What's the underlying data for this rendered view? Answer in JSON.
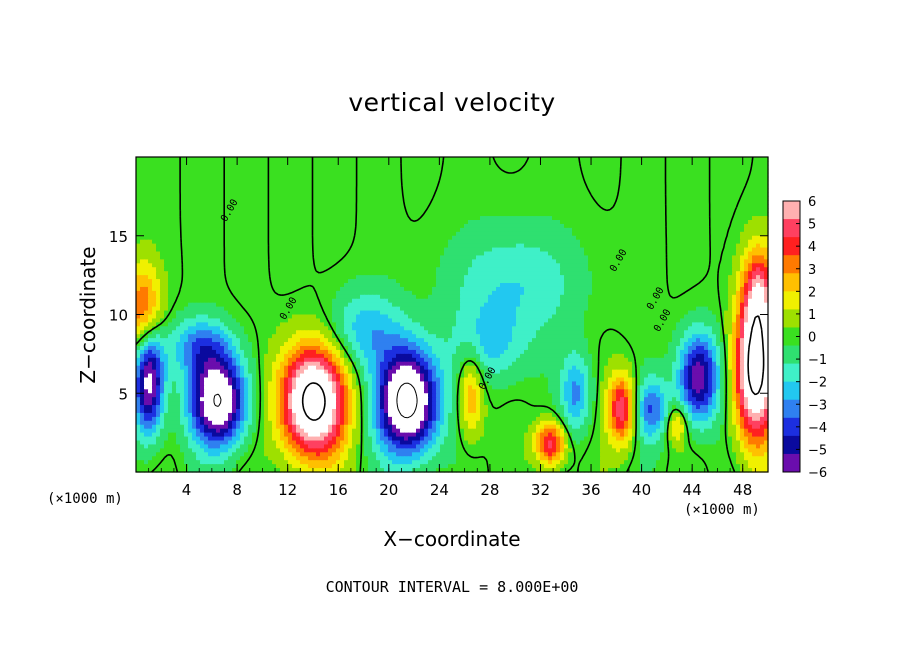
{
  "chart_data": {
    "type": "heatmap",
    "title": "vertical velocity",
    "xlabel": "X−coordinate",
    "ylabel": "Z−coordinate",
    "x_unit_left": "(×1000 m)",
    "x_unit_right": "(×1000 m)",
    "xlim": [
      0,
      50
    ],
    "ylim": [
      0,
      20
    ],
    "x_ticks": [
      "4",
      "8",
      "12",
      "16",
      "20",
      "24",
      "28",
      "32",
      "36",
      "40",
      "44",
      "48"
    ],
    "y_ticks": [
      "5",
      "10",
      "15"
    ],
    "colorbar": {
      "ticks": [
        "6",
        "5",
        "4",
        "3",
        "2",
        "1",
        "0",
        "−1",
        "−2",
        "−3",
        "−4",
        "−5",
        "−6"
      ],
      "range": [
        -6,
        6
      ],
      "colors": [
        "#6a0dad",
        "#0a0a9e",
        "#1c2fe0",
        "#2f80f0",
        "#22c8f0",
        "#3ff0c8",
        "#2fe070",
        "#3ae020",
        "#9ee000",
        "#f0f000",
        "#ffc000",
        "#ff7a00",
        "#ff2020",
        "#ff4060",
        "#ffb0b0"
      ]
    },
    "contour_labels": [
      "0.00",
      "0.00",
      "0.00",
      "0.00",
      "0.00",
      "0.00"
    ],
    "features": [
      {
        "x": 1.0,
        "z": 6,
        "w": -7,
        "sx": 1.2,
        "sz": 3.5
      },
      {
        "x": 0.6,
        "z": 10,
        "w": 4.5,
        "sx": 1.4,
        "sz": 3.0
      },
      {
        "x": 6.5,
        "z": 4.5,
        "w": -8,
        "sx": 2.2,
        "sz": 2.8
      },
      {
        "x": 5.0,
        "z": 8,
        "w": -3,
        "sx": 2.5,
        "sz": 1.8
      },
      {
        "x": 14.0,
        "z": 4.5,
        "w": 9,
        "sx": 2.6,
        "sz": 3.5
      },
      {
        "x": 21.5,
        "z": 4.5,
        "w": -9,
        "sx": 2.4,
        "sz": 3.3
      },
      {
        "x": 18.0,
        "z": 9,
        "w": -2.5,
        "sx": 3.0,
        "sz": 2.5
      },
      {
        "x": 26.5,
        "z": 5,
        "w": 3,
        "sx": 1.0,
        "sz": 2.8
      },
      {
        "x": 28.0,
        "z": 8,
        "w": -2,
        "sx": 3.0,
        "sz": 2.5
      },
      {
        "x": 32.8,
        "z": 1.8,
        "w": 5,
        "sx": 1.2,
        "sz": 1.4
      },
      {
        "x": 34.8,
        "z": 5,
        "w": -3,
        "sx": 1.2,
        "sz": 2.5
      },
      {
        "x": 38.4,
        "z": 4,
        "w": 5,
        "sx": 1.1,
        "sz": 2.2
      },
      {
        "x": 40.8,
        "z": 4,
        "w": -3.5,
        "sx": 1.3,
        "sz": 2.0
      },
      {
        "x": 42.8,
        "z": 3,
        "w": 2.5,
        "sx": 0.8,
        "sz": 1.2
      },
      {
        "x": 44.5,
        "z": 6,
        "w": -6,
        "sx": 1.6,
        "sz": 2.8
      },
      {
        "x": 49.0,
        "z": 6.5,
        "w": 9,
        "sx": 1.6,
        "sz": 4.5
      },
      {
        "x": 49.3,
        "z": 11.5,
        "w": 4,
        "sx": 1.3,
        "sz": 3.0
      },
      {
        "x": 30.0,
        "z": 12,
        "w": -2,
        "sx": 5.0,
        "sz": 3.5
      }
    ]
  },
  "footer": "CONTOUR INTERVAL = 8.000E+00"
}
